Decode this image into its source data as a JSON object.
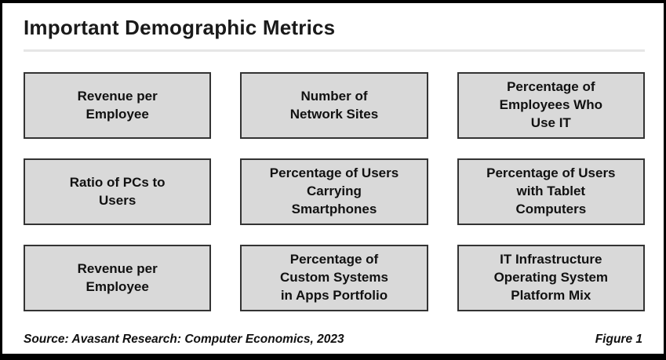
{
  "title": "Important Demographic Metrics",
  "grid": {
    "boxes": [
      {
        "label": "Revenue per\nEmployee"
      },
      {
        "label": "Number of\nNetwork Sites"
      },
      {
        "label": "Percentage of\nEmployees Who\nUse IT"
      },
      {
        "label": "Ratio of PCs to\nUsers"
      },
      {
        "label": "Percentage of Users\nCarrying\nSmartphones"
      },
      {
        "label": "Percentage of Users\nwith Tablet\nComputers"
      },
      {
        "label": "Revenue per\nEmployee"
      },
      {
        "label": "Percentage of\nCustom Systems\nin Apps Portfolio"
      },
      {
        "label": "IT Infrastructure\nOperating System\nPlatform Mix"
      }
    ]
  },
  "footer": {
    "source": "Source: Avasant Research: Computer Economics, 2023",
    "figure": "Figure 1"
  },
  "colors": {
    "box_fill": "#d9d9d9",
    "box_border": "#333333",
    "frame_border": "#000000",
    "divider": "#e6e6e6",
    "text": "#111111"
  }
}
